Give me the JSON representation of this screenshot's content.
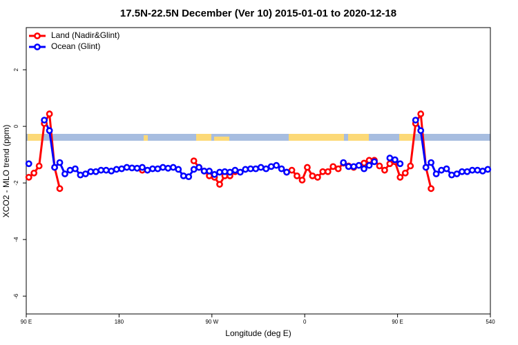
{
  "chart_data": {
    "type": "line",
    "title": "17.5N-22.5N December (Ver 10)   2015-01-01 to 2020-12-18",
    "x_label": "Longitude (deg E)",
    "y_label": "XCO2 - MLO trend (ppm)",
    "xlim": [
      90,
      540
    ],
    "xticks": [
      {
        "value": 90,
        "label": "90 E"
      },
      180,
      {
        "value": 270,
        "label": "90 W"
      },
      {
        "value": 360,
        "label": "0"
      },
      {
        "value": 450,
        "label": "90 E"
      },
      540
    ],
    "ylim": [
      -6.63,
      3.49
    ],
    "yticks": [
      -6,
      -4,
      -2,
      0,
      2
    ],
    "legend": "top-left",
    "x": [
      92.5,
      97.5,
      102.5,
      107.5,
      112.5,
      117.5,
      122.5,
      127.5,
      132.5,
      137.5,
      142.5,
      147.5,
      152.5,
      157.5,
      162.5,
      167.5,
      172.5,
      177.5,
      182.5,
      187.5,
      192.5,
      197.5,
      202.5,
      207.5,
      212.5,
      217.5,
      222.5,
      227.5,
      232.5,
      237.5,
      242.5,
      247.5,
      252.5,
      257.5,
      262.5,
      267.5,
      272.5,
      277.5,
      282.5,
      287.5,
      292.5,
      297.5,
      302.5,
      307.5,
      312.5,
      317.5,
      322.5,
      327.5,
      332.5,
      337.5,
      342.5,
      347.5,
      352.5,
      357.5,
      362.5,
      367.5,
      372.5,
      377.5,
      382.5,
      387.5,
      392.5,
      397.5,
      402.5,
      407.5,
      412.5,
      417.5,
      422.5,
      427.5,
      432.5,
      437.5,
      442.5,
      447.5,
      452.5,
      457.5,
      462.5,
      467.5,
      472.5,
      477.5,
      482.5,
      487.5,
      492.5,
      497.5,
      502.5,
      507.5,
      512.5,
      517.5,
      522.5,
      527.5,
      532.5,
      537.5
    ],
    "series": [
      {
        "name": "Land (Nadir&Glint)",
        "color": "#ff0000",
        "values": [
          -1.8,
          -1.65,
          -1.4,
          0.1,
          0.44,
          -1.45,
          -2.2,
          null,
          null,
          null,
          null,
          null,
          null,
          null,
          null,
          null,
          null,
          null,
          null,
          null,
          null,
          null,
          -1.55,
          null,
          null,
          null,
          null,
          null,
          null,
          null,
          null,
          null,
          -1.22,
          -1.45,
          -1.58,
          -1.75,
          -1.8,
          -2.05,
          -1.75,
          -1.75,
          -1.6,
          null,
          null,
          null,
          null,
          null,
          null,
          null,
          null,
          null,
          -1.62,
          -1.55,
          -1.75,
          -1.9,
          -1.45,
          -1.75,
          -1.8,
          -1.6,
          -1.6,
          -1.42,
          -1.5,
          -1.3,
          -1.4,
          -1.45,
          null,
          -1.3,
          -1.2,
          -1.2,
          -1.4,
          -1.55,
          -1.32,
          -1.25,
          -1.8,
          -1.65,
          -1.4,
          0.1,
          0.44,
          -1.45,
          -2.2,
          null,
          null,
          null,
          null,
          null,
          null,
          null,
          null,
          null,
          null,
          null
        ]
      },
      {
        "name": "Ocean (Glint)",
        "color": "#0000ff",
        "values": [
          -1.32,
          null,
          null,
          0.22,
          -0.15,
          -1.45,
          -1.28,
          -1.68,
          -1.55,
          -1.5,
          -1.72,
          -1.68,
          -1.6,
          -1.6,
          -1.55,
          -1.55,
          -1.58,
          -1.52,
          -1.5,
          -1.45,
          -1.47,
          -1.48,
          -1.45,
          -1.55,
          -1.5,
          -1.5,
          -1.45,
          -1.48,
          -1.45,
          -1.52,
          -1.75,
          -1.78,
          -1.52,
          -1.45,
          -1.58,
          -1.58,
          -1.7,
          -1.62,
          -1.6,
          -1.62,
          -1.55,
          -1.62,
          -1.52,
          -1.5,
          -1.5,
          -1.45,
          -1.5,
          -1.42,
          -1.38,
          -1.5,
          -1.62,
          null,
          null,
          null,
          null,
          null,
          null,
          null,
          null,
          null,
          null,
          -1.28,
          -1.42,
          -1.42,
          -1.38,
          -1.5,
          -1.38,
          -1.25,
          null,
          null,
          -1.12,
          -1.18,
          -1.32,
          null,
          null,
          0.22,
          -0.15,
          -1.45,
          -1.28,
          -1.68,
          -1.55,
          -1.5,
          -1.72,
          -1.68,
          -1.6,
          -1.6,
          -1.55,
          -1.55,
          -1.58,
          -1.52
        ]
      }
    ]
  }
}
